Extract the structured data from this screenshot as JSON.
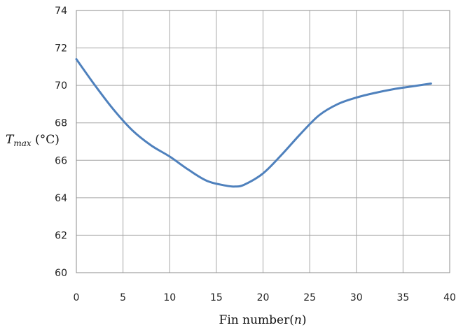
{
  "chart_data": {
    "type": "line",
    "title": "",
    "xlabel": {
      "text": "Fin number",
      "paren_open": "(",
      "variable": "n",
      "paren_close": ")"
    },
    "ylabel": {
      "variable": "T",
      "subscript": "max",
      "unit": " (°C)"
    },
    "xlim": [
      0,
      40
    ],
    "ylim": [
      60,
      74
    ],
    "xticks": [
      0,
      5,
      10,
      15,
      20,
      25,
      30,
      35,
      40
    ],
    "yticks": [
      60,
      62,
      64,
      66,
      68,
      70,
      72,
      74
    ],
    "grid": true,
    "legend": "none",
    "series": [
      {
        "color": "#4f81bd",
        "x": [
          0,
          2,
          4,
          6,
          8,
          10,
          12,
          14,
          16,
          17,
          18,
          20,
          22,
          24,
          26,
          28,
          30,
          32,
          34,
          36,
          38
        ],
        "y": [
          71.4,
          70.0,
          68.7,
          67.6,
          66.8,
          66.2,
          65.5,
          64.9,
          64.65,
          64.6,
          64.7,
          65.3,
          66.3,
          67.4,
          68.4,
          69.0,
          69.35,
          69.6,
          69.8,
          69.95,
          70.1
        ]
      }
    ]
  }
}
